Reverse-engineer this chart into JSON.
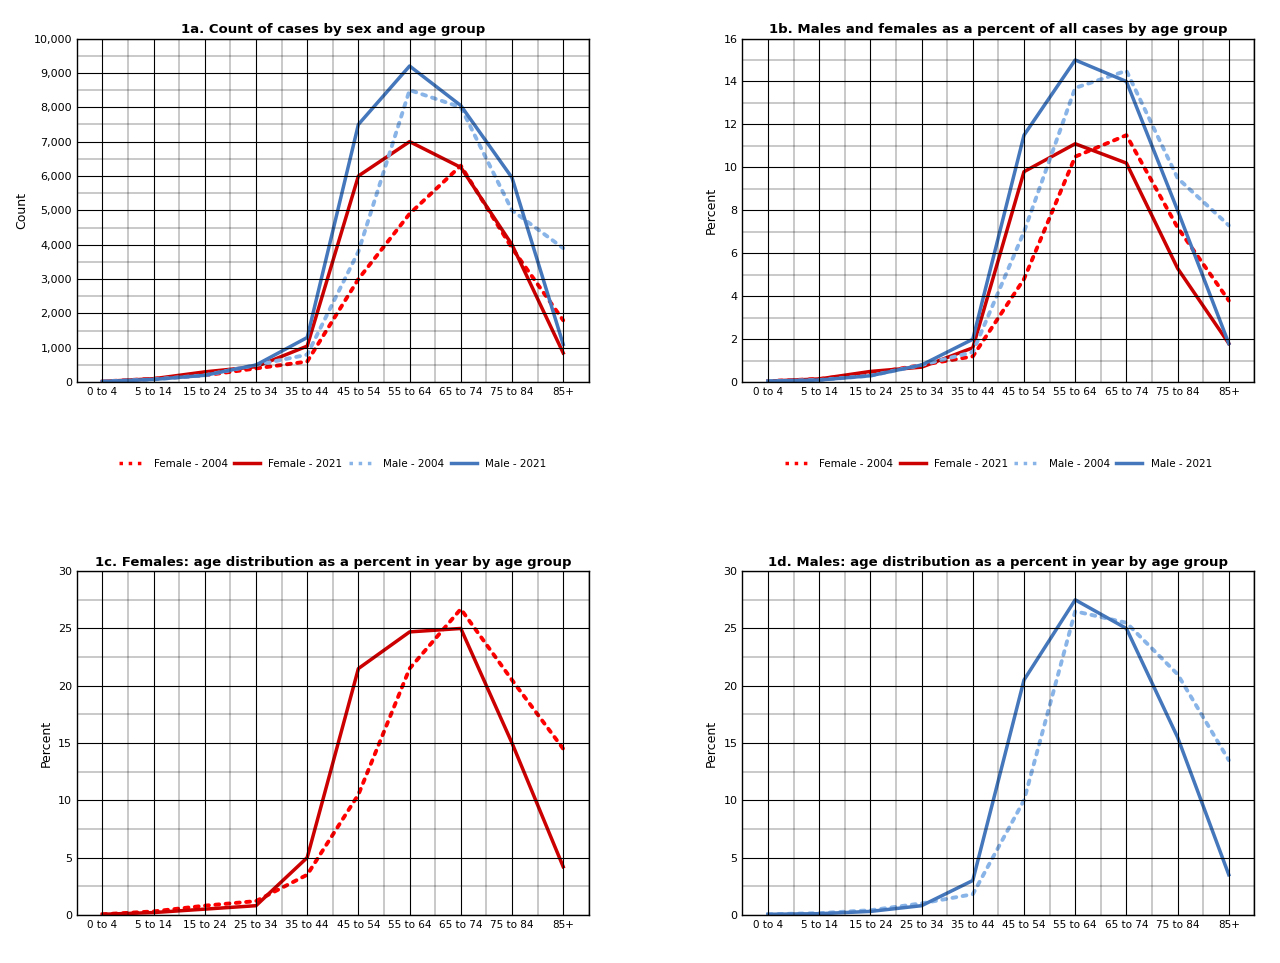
{
  "age_groups": [
    "0 to 4",
    "5 to 14",
    "15 to 24",
    "25 to 34",
    "35 to 44",
    "45 to 54",
    "55 to 64",
    "65 to 74",
    "75 to 84",
    "85+"
  ],
  "chart1a": {
    "title": "1a. Count of cases by sex and age group",
    "ylabel": "Count",
    "ylim": [
      0,
      10000
    ],
    "yticks": [
      0,
      1000,
      2000,
      3000,
      4000,
      5000,
      6000,
      7000,
      8000,
      9000,
      10000
    ],
    "female_2004": [
      20,
      100,
      200,
      400,
      600,
      3000,
      4900,
      6300,
      3900,
      1800
    ],
    "female_2021": [
      20,
      100,
      300,
      450,
      1050,
      6000,
      7000,
      6250,
      4000,
      850
    ],
    "male_2004": [
      20,
      80,
      200,
      500,
      800,
      3800,
      8500,
      8000,
      5000,
      3900
    ],
    "male_2021": [
      20,
      80,
      200,
      500,
      1300,
      7500,
      9200,
      8050,
      5950,
      1100
    ]
  },
  "chart1b": {
    "title": "1b. Males and females as a percent of all cases by age group",
    "ylabel": "Percent",
    "ylim": [
      0,
      16
    ],
    "yticks": [
      0,
      2,
      4,
      6,
      8,
      10,
      12,
      14,
      16
    ],
    "female_2004": [
      0.05,
      0.15,
      0.4,
      0.8,
      1.2,
      4.8,
      10.5,
      11.5,
      7.2,
      3.8
    ],
    "female_2021": [
      0.05,
      0.15,
      0.5,
      0.7,
      1.6,
      9.8,
      11.1,
      10.2,
      5.3,
      1.8
    ],
    "male_2004": [
      0.05,
      0.1,
      0.3,
      0.8,
      1.4,
      7.0,
      13.7,
      14.5,
      9.5,
      7.3
    ],
    "male_2021": [
      0.05,
      0.1,
      0.3,
      0.8,
      2.0,
      11.5,
      15.0,
      14.0,
      8.0,
      1.8
    ]
  },
  "chart1c": {
    "title": "1c. Females: age distribution as a percent in year by age group",
    "ylabel": "Percent",
    "ylim": [
      0,
      30
    ],
    "yticks": [
      0,
      5,
      10,
      15,
      20,
      25,
      30
    ],
    "female_2004": [
      0.05,
      0.3,
      0.8,
      1.2,
      3.5,
      10.5,
      21.5,
      26.7,
      20.5,
      14.5
    ],
    "female_2021": [
      0.05,
      0.2,
      0.5,
      0.8,
      5.0,
      21.5,
      24.7,
      25.0,
      15.0,
      4.2
    ]
  },
  "chart1d": {
    "title": "1d. Males: age distribution as a percent in year by age group",
    "ylabel": "Percent",
    "ylim": [
      0,
      30
    ],
    "yticks": [
      0,
      5,
      10,
      15,
      20,
      25,
      30
    ],
    "male_2004": [
      0.05,
      0.15,
      0.4,
      1.0,
      1.8,
      10.0,
      26.5,
      25.5,
      21.0,
      13.5
    ],
    "male_2021": [
      0.05,
      0.1,
      0.3,
      0.8,
      3.0,
      20.5,
      27.5,
      25.0,
      15.5,
      3.5
    ]
  },
  "colors": {
    "red_dotted": "#FF0000",
    "red_solid": "#CC0000",
    "blue_dotted": "#89B4E8",
    "blue_solid": "#4477BB"
  }
}
